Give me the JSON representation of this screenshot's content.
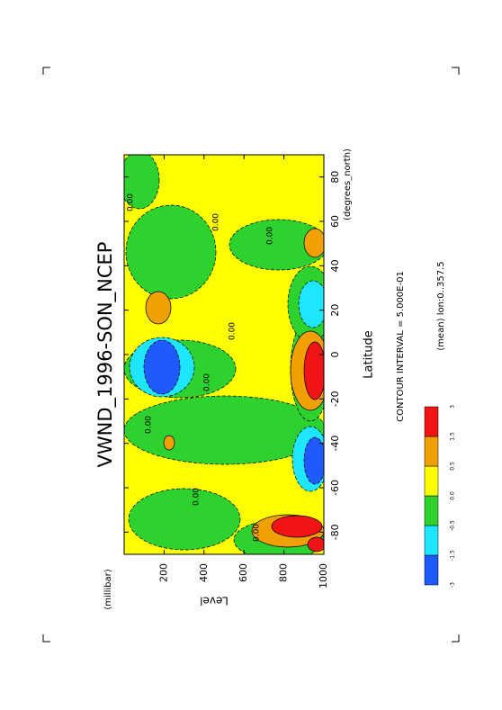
{
  "chart_data": {
    "type": "contour",
    "title": "VWND_1996-SON_NCEP",
    "x_label": "Latitude",
    "x_unit": "(degrees_north)",
    "y_label": "Level",
    "y_unit": "(millibar)",
    "xlim": [
      -90,
      90
    ],
    "xticks": [
      -80,
      -60,
      -40,
      -20,
      0,
      20,
      40,
      60,
      80
    ],
    "ylim": [
      0,
      1000
    ],
    "yticks": [
      200,
      400,
      600,
      800,
      1000
    ],
    "contour_interval": "CONTOUR INTERVAL = 5.000E-01",
    "annotation": "(mean) lon:0..357.5",
    "contour_labels": [
      "0.00",
      "0.00",
      "0.00",
      "0.00",
      "0.00",
      "0.00",
      "0.00",
      "0.00"
    ],
    "colorbar": {
      "levels": [
        -3,
        {
          "value": -1.5,
          "label": "-1.5"
        },
        {
          "value": -0.5,
          "label": "-0.5"
        },
        {
          "value": 0,
          "label": "0.0"
        },
        {
          "value": 0.5,
          "label": "0.5"
        },
        {
          "value": 1.5,
          "label": "1.5"
        },
        3
      ],
      "colors": [
        "#1e5aff",
        "#1ee6ff",
        "#2ed22e",
        "#ffff00",
        "#f0a000",
        "#f01414"
      ]
    }
  }
}
